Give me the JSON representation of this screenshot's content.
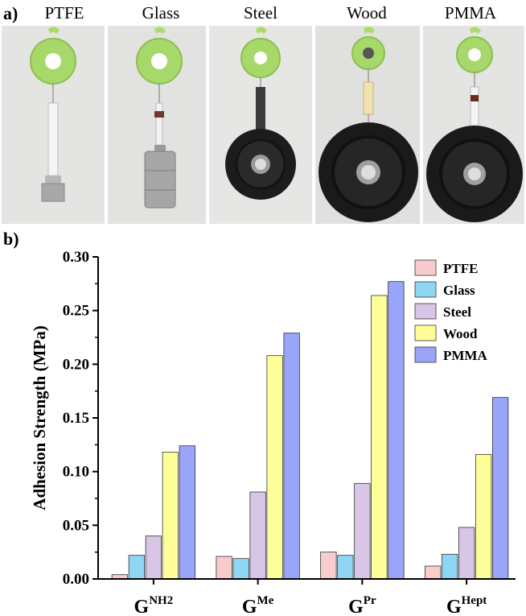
{
  "panel_a": {
    "label": "a)",
    "photos": [
      {
        "label": "PTFE",
        "weight": "small"
      },
      {
        "label": "Glass",
        "weight": "medium"
      },
      {
        "label": "Steel",
        "weight": "plate"
      },
      {
        "label": "Wood",
        "weight": "plate-large"
      },
      {
        "label": "PMMA",
        "weight": "plate-large"
      }
    ]
  },
  "panel_b": {
    "label": "b)"
  },
  "chart_data": {
    "type": "bar",
    "title": "",
    "xlabel": "",
    "ylabel": "Adhesion Strength (MPa)",
    "ylim": [
      0,
      0.3
    ],
    "yticks": [
      "0.00",
      "0.05",
      "0.10",
      "0.15",
      "0.20",
      "0.25",
      "0.30"
    ],
    "categories": [
      {
        "base": "G",
        "sup": "NH2"
      },
      {
        "base": "G",
        "sup": "Me"
      },
      {
        "base": "G",
        "sup": "Pr"
      },
      {
        "base": "G",
        "sup": "Hept"
      }
    ],
    "series": [
      {
        "name": "PTFE",
        "color": "#f8cccc",
        "values": [
          0.004,
          0.021,
          0.025,
          0.012
        ]
      },
      {
        "name": "Glass",
        "color": "#8fd6f5",
        "values": [
          0.022,
          0.019,
          0.022,
          0.023
        ]
      },
      {
        "name": "Steel",
        "color": "#d9c6e6",
        "values": [
          0.04,
          0.081,
          0.089,
          0.048
        ]
      },
      {
        "name": "Wood",
        "color": "#ffff99",
        "values": [
          0.118,
          0.208,
          0.264,
          0.116
        ]
      },
      {
        "name": "PMMA",
        "color": "#9aa4f8",
        "values": [
          0.124,
          0.229,
          0.277,
          0.169
        ]
      }
    ],
    "legend": "top-right",
    "grid": false
  }
}
